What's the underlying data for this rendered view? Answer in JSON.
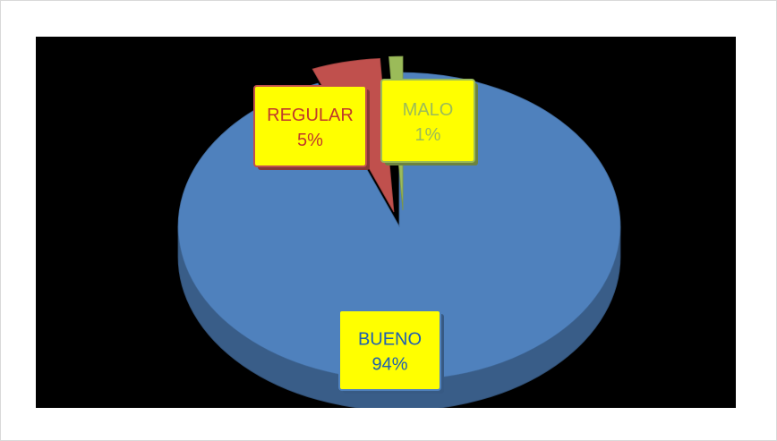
{
  "chart_data": {
    "type": "pie",
    "categories": [
      "BUENO",
      "REGULAR",
      "MALO"
    ],
    "values": [
      94,
      5,
      1
    ],
    "value_labels": [
      "94%",
      "5%",
      "1%"
    ],
    "colors": [
      "#4f81bd",
      "#c0504d",
      "#9bbb59"
    ],
    "label_box_fill": "#ffff00",
    "label_text_colors": [
      "#1f5fb0",
      "#c0392b",
      "#9bbb59"
    ],
    "style": "3d-exploded",
    "legend": "none",
    "title": ""
  }
}
